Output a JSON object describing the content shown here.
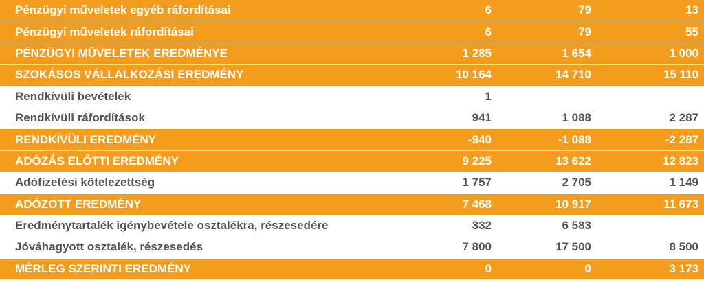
{
  "rows": [
    {
      "label": "Pénzügyi műveletek egyéb ráfordításai",
      "v1": "6",
      "v2": "79",
      "v3": "13",
      "style": "orange"
    },
    {
      "label": "Pénzügyi műveletek ráfordításai",
      "v1": "6",
      "v2": "79",
      "v3": "55",
      "style": "orange"
    },
    {
      "label": "PÉNZÜGYI MŰVELETEK EREDMÉNYE",
      "v1": "1 285",
      "v2": "1 654",
      "v3": "1 000",
      "style": "orange"
    },
    {
      "label": "SZOKÁSOS VÁLLALKOZÁSI EREDMÉNY",
      "v1": "10 164",
      "v2": "14 710",
      "v3": "15 110",
      "style": "orange"
    },
    {
      "label": "Rendkívüli bevételek",
      "v1": "1",
      "v2": "",
      "v3": "",
      "style": "plain"
    },
    {
      "label": "Rendkívüli ráfordítások",
      "v1": "941",
      "v2": "1 088",
      "v3": "2 287",
      "style": "plain"
    },
    {
      "label": "RENDKÍVÜLI EREDMÉNY",
      "v1": "-940",
      "v2": "-1 088",
      "v3": "-2 287",
      "style": "orange"
    },
    {
      "label": "ADÓZÁS ELŐTTI EREDMÉNY",
      "v1": "9 225",
      "v2": "13 622",
      "v3": "12 823",
      "style": "orange"
    },
    {
      "label": "Adófizetési kötelezettség",
      "v1": "1 757",
      "v2": "2 705",
      "v3": "1 149",
      "style": "plain"
    },
    {
      "label": "ADÓZOTT EREDMÉNY",
      "v1": "7 468",
      "v2": "10 917",
      "v3": "11 673",
      "style": "orange"
    },
    {
      "label": "Eredménytartalék igénybevétele osztalékra, részesedére",
      "v1": "332",
      "v2": "6 583",
      "v3": "",
      "style": "plain"
    },
    {
      "label": "Jóváhagyott osztalék, részesedés",
      "v1": "7 800",
      "v2": "17 500",
      "v3": "8 500",
      "style": "plain"
    },
    {
      "label": "MÉRLEG SZERINTI EREDMÉNY",
      "v1": "0",
      "v2": "0",
      "v3": "3 173",
      "style": "orange"
    }
  ],
  "colors": {
    "accent": "#f39c1e",
    "text_plain": "#555555",
    "text_on_accent": "#ffffff"
  }
}
